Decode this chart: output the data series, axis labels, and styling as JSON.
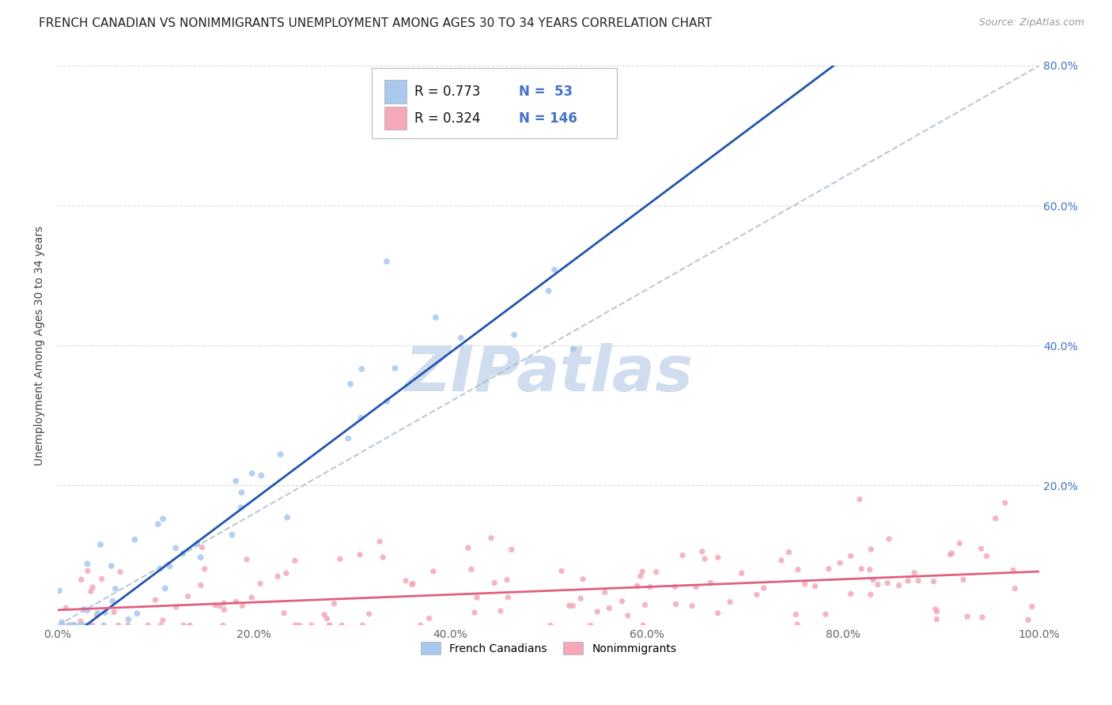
{
  "title": "FRENCH CANADIAN VS NONIMMIGRANTS UNEMPLOYMENT AMONG AGES 30 TO 34 YEARS CORRELATION CHART",
  "source": "Source: ZipAtlas.com",
  "ylabel": "Unemployment Among Ages 30 to 34 years",
  "xlim": [
    0,
    1.0
  ],
  "ylim": [
    0,
    0.8
  ],
  "xticks": [
    0.0,
    0.2,
    0.4,
    0.6,
    0.8,
    1.0
  ],
  "yticks": [
    0.0,
    0.2,
    0.4,
    0.6,
    0.8
  ],
  "xticklabels": [
    "0.0%",
    "20.0%",
    "40.0%",
    "60.0%",
    "80.0%",
    "100.0%"
  ],
  "right_yticklabels": [
    "",
    "20.0%",
    "40.0%",
    "60.0%",
    "80.0%"
  ],
  "legend_r1": "R = 0.773",
  "legend_n1": "N =  53",
  "legend_r2": "R = 0.324",
  "legend_n2": "N = 146",
  "legend_label1": "French Canadians",
  "legend_label2": "Nonimmigrants",
  "blue_scatter_color": "#A8C8EE",
  "pink_scatter_color": "#F4A8B8",
  "blue_line_color": "#2255AA",
  "pink_line_color": "#E06080",
  "ref_line_color": "#AABBD0",
  "watermark_text": "ZIPatlas",
  "watermark_color": "#D0DDEF",
  "background_color": "#FFFFFF",
  "grid_color": "#CCCCCC",
  "title_fontsize": 11,
  "axis_label_fontsize": 10,
  "tick_fontsize": 10,
  "legend_fontsize": 12,
  "source_fontsize": 9,
  "blue_n": 53,
  "pink_n": 146,
  "blue_slope": 1.05,
  "blue_intercept": -0.02,
  "pink_slope": 0.06,
  "pink_intercept": 0.02
}
